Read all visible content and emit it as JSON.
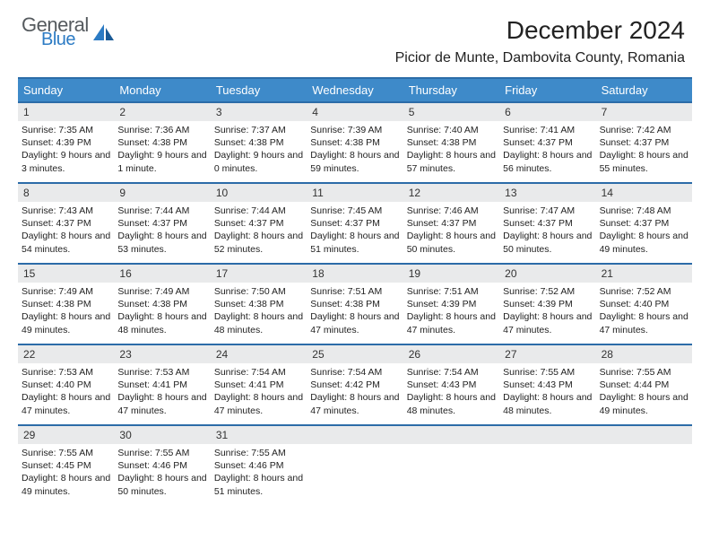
{
  "logo": {
    "text1": "General",
    "text2": "Blue"
  },
  "title": "December 2024",
  "location": "Picior de Munte, Dambovita County, Romania",
  "day_names": [
    "Sunday",
    "Monday",
    "Tuesday",
    "Wednesday",
    "Thursday",
    "Friday",
    "Saturday"
  ],
  "colors": {
    "header_bg": "#3e8ac9",
    "border": "#2c6ca8",
    "daynum_bg": "#e9eaeb"
  },
  "weeks": [
    [
      {
        "n": "1",
        "sr": "Sunrise: 7:35 AM",
        "ss": "Sunset: 4:39 PM",
        "dl": "Daylight: 9 hours and 3 minutes."
      },
      {
        "n": "2",
        "sr": "Sunrise: 7:36 AM",
        "ss": "Sunset: 4:38 PM",
        "dl": "Daylight: 9 hours and 1 minute."
      },
      {
        "n": "3",
        "sr": "Sunrise: 7:37 AM",
        "ss": "Sunset: 4:38 PM",
        "dl": "Daylight: 9 hours and 0 minutes."
      },
      {
        "n": "4",
        "sr": "Sunrise: 7:39 AM",
        "ss": "Sunset: 4:38 PM",
        "dl": "Daylight: 8 hours and 59 minutes."
      },
      {
        "n": "5",
        "sr": "Sunrise: 7:40 AM",
        "ss": "Sunset: 4:38 PM",
        "dl": "Daylight: 8 hours and 57 minutes."
      },
      {
        "n": "6",
        "sr": "Sunrise: 7:41 AM",
        "ss": "Sunset: 4:37 PM",
        "dl": "Daylight: 8 hours and 56 minutes."
      },
      {
        "n": "7",
        "sr": "Sunrise: 7:42 AM",
        "ss": "Sunset: 4:37 PM",
        "dl": "Daylight: 8 hours and 55 minutes."
      }
    ],
    [
      {
        "n": "8",
        "sr": "Sunrise: 7:43 AM",
        "ss": "Sunset: 4:37 PM",
        "dl": "Daylight: 8 hours and 54 minutes."
      },
      {
        "n": "9",
        "sr": "Sunrise: 7:44 AM",
        "ss": "Sunset: 4:37 PM",
        "dl": "Daylight: 8 hours and 53 minutes."
      },
      {
        "n": "10",
        "sr": "Sunrise: 7:44 AM",
        "ss": "Sunset: 4:37 PM",
        "dl": "Daylight: 8 hours and 52 minutes."
      },
      {
        "n": "11",
        "sr": "Sunrise: 7:45 AM",
        "ss": "Sunset: 4:37 PM",
        "dl": "Daylight: 8 hours and 51 minutes."
      },
      {
        "n": "12",
        "sr": "Sunrise: 7:46 AM",
        "ss": "Sunset: 4:37 PM",
        "dl": "Daylight: 8 hours and 50 minutes."
      },
      {
        "n": "13",
        "sr": "Sunrise: 7:47 AM",
        "ss": "Sunset: 4:37 PM",
        "dl": "Daylight: 8 hours and 50 minutes."
      },
      {
        "n": "14",
        "sr": "Sunrise: 7:48 AM",
        "ss": "Sunset: 4:37 PM",
        "dl": "Daylight: 8 hours and 49 minutes."
      }
    ],
    [
      {
        "n": "15",
        "sr": "Sunrise: 7:49 AM",
        "ss": "Sunset: 4:38 PM",
        "dl": "Daylight: 8 hours and 49 minutes."
      },
      {
        "n": "16",
        "sr": "Sunrise: 7:49 AM",
        "ss": "Sunset: 4:38 PM",
        "dl": "Daylight: 8 hours and 48 minutes."
      },
      {
        "n": "17",
        "sr": "Sunrise: 7:50 AM",
        "ss": "Sunset: 4:38 PM",
        "dl": "Daylight: 8 hours and 48 minutes."
      },
      {
        "n": "18",
        "sr": "Sunrise: 7:51 AM",
        "ss": "Sunset: 4:38 PM",
        "dl": "Daylight: 8 hours and 47 minutes."
      },
      {
        "n": "19",
        "sr": "Sunrise: 7:51 AM",
        "ss": "Sunset: 4:39 PM",
        "dl": "Daylight: 8 hours and 47 minutes."
      },
      {
        "n": "20",
        "sr": "Sunrise: 7:52 AM",
        "ss": "Sunset: 4:39 PM",
        "dl": "Daylight: 8 hours and 47 minutes."
      },
      {
        "n": "21",
        "sr": "Sunrise: 7:52 AM",
        "ss": "Sunset: 4:40 PM",
        "dl": "Daylight: 8 hours and 47 minutes."
      }
    ],
    [
      {
        "n": "22",
        "sr": "Sunrise: 7:53 AM",
        "ss": "Sunset: 4:40 PM",
        "dl": "Daylight: 8 hours and 47 minutes."
      },
      {
        "n": "23",
        "sr": "Sunrise: 7:53 AM",
        "ss": "Sunset: 4:41 PM",
        "dl": "Daylight: 8 hours and 47 minutes."
      },
      {
        "n": "24",
        "sr": "Sunrise: 7:54 AM",
        "ss": "Sunset: 4:41 PM",
        "dl": "Daylight: 8 hours and 47 minutes."
      },
      {
        "n": "25",
        "sr": "Sunrise: 7:54 AM",
        "ss": "Sunset: 4:42 PM",
        "dl": "Daylight: 8 hours and 47 minutes."
      },
      {
        "n": "26",
        "sr": "Sunrise: 7:54 AM",
        "ss": "Sunset: 4:43 PM",
        "dl": "Daylight: 8 hours and 48 minutes."
      },
      {
        "n": "27",
        "sr": "Sunrise: 7:55 AM",
        "ss": "Sunset: 4:43 PM",
        "dl": "Daylight: 8 hours and 48 minutes."
      },
      {
        "n": "28",
        "sr": "Sunrise: 7:55 AM",
        "ss": "Sunset: 4:44 PM",
        "dl": "Daylight: 8 hours and 49 minutes."
      }
    ],
    [
      {
        "n": "29",
        "sr": "Sunrise: 7:55 AM",
        "ss": "Sunset: 4:45 PM",
        "dl": "Daylight: 8 hours and 49 minutes."
      },
      {
        "n": "30",
        "sr": "Sunrise: 7:55 AM",
        "ss": "Sunset: 4:46 PM",
        "dl": "Daylight: 8 hours and 50 minutes."
      },
      {
        "n": "31",
        "sr": "Sunrise: 7:55 AM",
        "ss": "Sunset: 4:46 PM",
        "dl": "Daylight: 8 hours and 51 minutes."
      },
      {
        "empty": true
      },
      {
        "empty": true
      },
      {
        "empty": true
      },
      {
        "empty": true
      }
    ]
  ]
}
